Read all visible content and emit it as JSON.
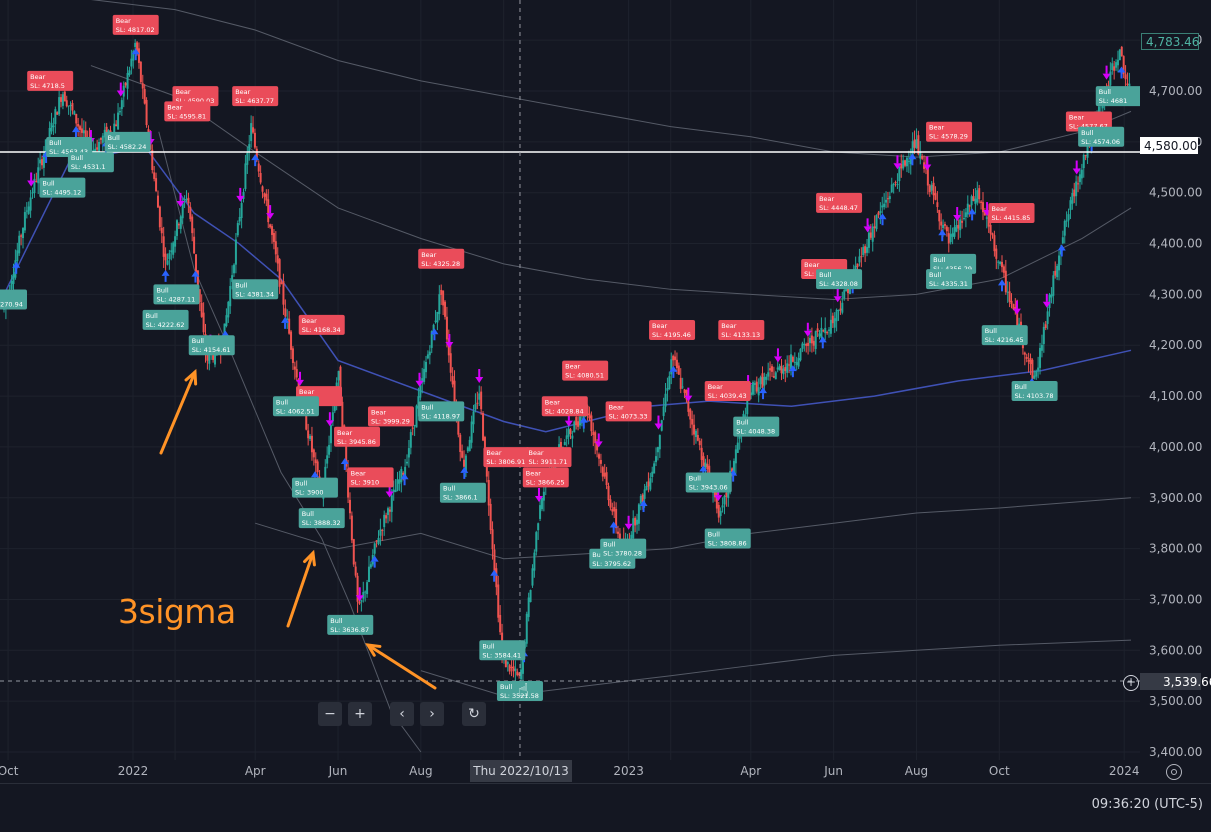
{
  "chart_data": {
    "type": "candlestick",
    "ylim": [
      3400,
      4820
    ],
    "y_ticks": [
      "4,800.00",
      "4,700.00",
      "4,600.00",
      "4,500.00",
      "4,400.00",
      "4,300.00",
      "4,200.00",
      "4,100.00",
      "4,000.00",
      "3,900.00",
      "3,800.00",
      "3,700.00",
      "3,600.00",
      "3,500.00",
      "3,400.00"
    ],
    "y_tick_values": [
      4800,
      4700,
      4600,
      4500,
      4400,
      4300,
      4200,
      4100,
      4000,
      3900,
      3800,
      3700,
      3600,
      3500,
      3400
    ],
    "x_ticks": [
      "Oct",
      "2022",
      "Feb",
      "Apr",
      "Jun",
      "Aug",
      "Oct",
      "2023",
      "Feb",
      "Apr",
      "Jun",
      "Aug",
      "Oct",
      "2024"
    ],
    "x_tick_dates": [
      "2021-10-01",
      "2022-01-01",
      "2022-02-01",
      "2022-04-01",
      "2022-06-01",
      "2022-08-01",
      "2022-10-01",
      "2023-01-01",
      "2023-02-01",
      "2023-04-01",
      "2023-06-01",
      "2023-08-01",
      "2023-10-01",
      "2024-01-01"
    ],
    "x_tick_visible": [
      true,
      true,
      false,
      true,
      true,
      true,
      false,
      true,
      false,
      true,
      true,
      true,
      true,
      true
    ],
    "x_range": [
      "2021-09-28",
      "2024-01-06"
    ],
    "price_path": [
      [
        "2021-09-28",
        4270
      ],
      [
        "2021-10-15",
        4470
      ],
      [
        "2021-11-10",
        4700
      ],
      [
        "2021-12-01",
        4580
      ],
      [
        "2021-12-20",
        4640
      ],
      [
        "2022-01-03",
        4796
      ],
      [
        "2022-01-25",
        4360
      ],
      [
        "2022-02-10",
        4500
      ],
      [
        "2022-02-24",
        4170
      ],
      [
        "2022-03-08",
        4200
      ],
      [
        "2022-03-29",
        4630
      ],
      [
        "2022-04-15",
        4390
      ],
      [
        "2022-05-02",
        4130
      ],
      [
        "2022-05-20",
        3900
      ],
      [
        "2022-06-01",
        4150
      ],
      [
        "2022-06-16",
        3670
      ],
      [
        "2022-07-01",
        3830
      ],
      [
        "2022-07-20",
        3960
      ],
      [
        "2022-08-16",
        4310
      ],
      [
        "2022-09-01",
        3960
      ],
      [
        "2022-09-13",
        4110
      ],
      [
        "2022-09-30",
        3585
      ],
      [
        "2022-10-13",
        3540
      ],
      [
        "2022-10-28",
        3900
      ],
      [
        "2022-11-10",
        3990
      ],
      [
        "2022-12-01",
        4080
      ],
      [
        "2022-12-28",
        3790
      ],
      [
        "2023-01-20",
        3970
      ],
      [
        "2023-02-02",
        4180
      ],
      [
        "2023-03-10",
        3860
      ],
      [
        "2023-03-31",
        4110
      ],
      [
        "2023-05-01",
        4170
      ],
      [
        "2023-06-01",
        4250
      ],
      [
        "2023-07-03",
        4450
      ],
      [
        "2023-07-31",
        4600
      ],
      [
        "2023-08-25",
        4400
      ],
      [
        "2023-09-15",
        4500
      ],
      [
        "2023-10-27",
        4130
      ],
      [
        "2023-11-15",
        4400
      ],
      [
        "2023-12-01",
        4560
      ],
      [
        "2023-12-28",
        4780
      ],
      [
        "2024-01-05",
        4700
      ]
    ],
    "ma_fast": [
      [
        "2021-09-28",
        4300
      ],
      [
        "2021-11-15",
        4560
      ],
      [
        "2022-01-10",
        4590
      ],
      [
        "2022-02-15",
        4460
      ],
      [
        "2022-03-20",
        4400
      ],
      [
        "2022-04-20",
        4330
      ],
      [
        "2022-06-01",
        4170
      ],
      [
        "2022-08-01",
        4110
      ],
      [
        "2022-10-01",
        4050
      ],
      [
        "2022-11-01",
        4030
      ],
      [
        "2022-12-01",
        4050
      ],
      [
        "2023-01-15",
        4080
      ],
      [
        "2023-03-01",
        4090
      ],
      [
        "2023-05-01",
        4080
      ],
      [
        "2023-07-01",
        4100
      ],
      [
        "2023-09-01",
        4130
      ],
      [
        "2023-11-01",
        4150
      ],
      [
        "2024-01-06",
        4190
      ]
    ],
    "band_upper": [
      [
        "2021-12-01",
        4880
      ],
      [
        "2022-02-01",
        4860
      ],
      [
        "2022-04-01",
        4820
      ],
      [
        "2022-06-01",
        4760
      ],
      [
        "2022-08-01",
        4720
      ],
      [
        "2022-10-01",
        4690
      ],
      [
        "2022-12-01",
        4660
      ],
      [
        "2023-02-01",
        4630
      ],
      [
        "2023-04-01",
        4610
      ],
      [
        "2023-06-01",
        4580
      ],
      [
        "2023-08-01",
        4570
      ],
      [
        "2023-10-01",
        4580
      ],
      [
        "2023-12-01",
        4620
      ],
      [
        "2024-01-06",
        4660
      ]
    ],
    "band_mid": [
      [
        "2021-12-01",
        4750
      ],
      [
        "2022-02-01",
        4690
      ],
      [
        "2022-04-01",
        4580
      ],
      [
        "2022-06-01",
        4470
      ],
      [
        "2022-08-01",
        4410
      ],
      [
        "2022-10-01",
        4360
      ],
      [
        "2022-12-01",
        4330
      ],
      [
        "2023-02-01",
        4310
      ],
      [
        "2023-04-01",
        4300
      ],
      [
        "2023-06-01",
        4290
      ],
      [
        "2023-08-01",
        4300
      ],
      [
        "2023-10-01",
        4330
      ],
      [
        "2023-12-01",
        4410
      ],
      [
        "2024-01-06",
        4470
      ]
    ],
    "band_lower": [
      [
        "2022-04-01",
        3850
      ],
      [
        "2022-06-01",
        3800
      ],
      [
        "2022-08-01",
        3830
      ],
      [
        "2022-10-01",
        3780
      ],
      [
        "2022-12-01",
        3790
      ],
      [
        "2023-02-01",
        3800
      ],
      [
        "2023-04-01",
        3830
      ],
      [
        "2023-06-01",
        3850
      ],
      [
        "2023-08-01",
        3870
      ],
      [
        "2023-10-01",
        3880
      ],
      [
        "2024-01-06",
        3900
      ]
    ],
    "band_lower2": [
      [
        "2022-08-01",
        3560
      ],
      [
        "2022-10-01",
        3510
      ],
      [
        "2022-12-01",
        3530
      ],
      [
        "2023-02-01",
        3550
      ],
      [
        "2023-04-01",
        3570
      ],
      [
        "2023-06-01",
        3590
      ],
      [
        "2023-08-01",
        3600
      ],
      [
        "2023-10-01",
        3610
      ],
      [
        "2024-01-06",
        3620
      ]
    ],
    "band_lower3": [
      [
        "2022-01-20",
        4620
      ],
      [
        "2022-02-15",
        4350
      ],
      [
        "2022-03-15",
        4180
      ],
      [
        "2022-04-20",
        3950
      ],
      [
        "2022-05-20",
        3820
      ],
      [
        "2022-06-10",
        3690
      ],
      [
        "2022-07-10",
        3480
      ],
      [
        "2022-08-01",
        3400
      ]
    ],
    "horizontal_line": 4580,
    "last_price": "4,783.46",
    "line_price": "4,580.00",
    "crosshair_price": "3,539.66",
    "crosshair_date": "Thu 2022/10/13",
    "crosshair_date_iso": "2022-10-13",
    "crosshair_value": 3539.66,
    "bear_labels": [
      {
        "date": "2021-11-01",
        "price": 4720,
        "text": "SL: 4718.5"
      },
      {
        "date": "2022-01-03",
        "price": 4830,
        "text": "SL: 4817.02"
      },
      {
        "date": "2022-02-16",
        "price": 4690,
        "text": "SL: 4590.03"
      },
      {
        "date": "2022-02-10",
        "price": 4660,
        "text": "SL: 4595.81"
      },
      {
        "date": "2022-04-01",
        "price": 4690,
        "text": "SL: 4637.77"
      },
      {
        "date": "2022-05-20",
        "price": 4240,
        "text": "SL: 4168.34"
      },
      {
        "date": "2022-05-18",
        "price": 4100,
        "text": ""
      },
      {
        "date": "2022-06-15",
        "price": 4020,
        "text": "SL: 3945.86"
      },
      {
        "date": "2022-06-25",
        "price": 3940,
        "text": "SL: 3910"
      },
      {
        "date": "2022-07-10",
        "price": 4060,
        "text": "SL: 3999.29"
      },
      {
        "date": "2022-08-16",
        "price": 4370,
        "text": "SL: 4325.28"
      },
      {
        "date": "2022-10-03",
        "price": 3980,
        "text": "SL: 3806.91"
      },
      {
        "date": "2022-11-03",
        "price": 3980,
        "text": "SL: 3911.71"
      },
      {
        "date": "2022-11-01",
        "price": 3940,
        "text": "SL: 3866.25"
      },
      {
        "date": "2022-11-15",
        "price": 4080,
        "text": "SL: 4028.84"
      },
      {
        "date": "2022-11-30",
        "price": 4150,
        "text": "SL: 4080.51"
      },
      {
        "date": "2023-01-01",
        "price": 4070,
        "text": "SL: 4073.33"
      },
      {
        "date": "2023-02-02",
        "price": 4230,
        "text": "SL: 4195.46"
      },
      {
        "date": "2023-03-15",
        "price": 4110,
        "text": "SL: 4039.43"
      },
      {
        "date": "2023-03-25",
        "price": 4230,
        "text": "SL: 4133.13"
      },
      {
        "date": "2023-06-05",
        "price": 4480,
        "text": "SL: 4448.47"
      },
      {
        "date": "2023-05-25",
        "price": 4350,
        "text": "SL: 4328.28"
      },
      {
        "date": "2023-08-25",
        "price": 4620,
        "text": "SL: 4578.29"
      },
      {
        "date": "2023-10-10",
        "price": 4460,
        "text": "SL: 4415.85"
      },
      {
        "date": "2023-12-06",
        "price": 4640,
        "text": "SL: 4577.67"
      }
    ],
    "bull_labels": [
      {
        "date": "2021-09-28",
        "price": 4290,
        "text": "SL: 4270.94"
      },
      {
        "date": "2021-11-15",
        "price": 4590,
        "text": "SL: 4563.43"
      },
      {
        "date": "2021-11-10",
        "price": 4510,
        "text": "SL: 4495.12"
      },
      {
        "date": "2021-12-01",
        "price": 4560,
        "text": "SL: 4531.1"
      },
      {
        "date": "2021-12-28",
        "price": 4600,
        "text": "SL: 4582.24"
      },
      {
        "date": "2022-02-02",
        "price": 4300,
        "text": "SL: 4287.11"
      },
      {
        "date": "2022-01-25",
        "price": 4250,
        "text": "SL: 4222.62"
      },
      {
        "date": "2022-02-28",
        "price": 4200,
        "text": "SL: 4154.61"
      },
      {
        "date": "2022-04-01",
        "price": 4310,
        "text": "SL: 4381.34"
      },
      {
        "date": "2022-05-01",
        "price": 4080,
        "text": "SL: 4062.51"
      },
      {
        "date": "2022-05-15",
        "price": 3920,
        "text": "SL: 3900"
      },
      {
        "date": "2022-05-20",
        "price": 3860,
        "text": "SL: 3888.32"
      },
      {
        "date": "2022-06-10",
        "price": 3650,
        "text": "SL: 3636.87"
      },
      {
        "date": "2022-08-16",
        "price": 4070,
        "text": "SL: 4118.97"
      },
      {
        "date": "2022-09-01",
        "price": 3910,
        "text": "SL: 3866.1"
      },
      {
        "date": "2022-09-30",
        "price": 3600,
        "text": "SL: 3584.41"
      },
      {
        "date": "2022-10-13",
        "price": 3520,
        "text": "SL: 3521.58"
      },
      {
        "date": "2022-12-20",
        "price": 3780,
        "text": "SL: 3795.62"
      },
      {
        "date": "2022-12-28",
        "price": 3800,
        "text": "SL: 3780.28"
      },
      {
        "date": "2023-03-01",
        "price": 3930,
        "text": "SL: 3943.06"
      },
      {
        "date": "2023-03-15",
        "price": 3820,
        "text": "SL: 3808.86"
      },
      {
        "date": "2023-04-05",
        "price": 4040,
        "text": "SL: 4048.38"
      },
      {
        "date": "2023-06-05",
        "price": 4330,
        "text": "SL: 4328.08"
      },
      {
        "date": "2023-08-28",
        "price": 4360,
        "text": "SL: 4356.29"
      },
      {
        "date": "2023-08-25",
        "price": 4330,
        "text": "SL: 4335.31"
      },
      {
        "date": "2023-10-05",
        "price": 4220,
        "text": "SL: 4216.45"
      },
      {
        "date": "2023-10-27",
        "price": 4110,
        "text": "SL: 4103.78"
      },
      {
        "date": "2023-12-15",
        "price": 4610,
        "text": "SL: 4574.06"
      },
      {
        "date": "2023-12-28",
        "price": 4690,
        "text": "SL: 4681"
      }
    ],
    "colors": {
      "background": "#141722",
      "up": "#26a69a",
      "down": "#ef5350",
      "ma": "#3f51b5",
      "band": "#555a66",
      "horizontal": "#ffffff",
      "bull_tag": "#4aa39a",
      "bear_tag": "#ea4c5a",
      "arrow_up": "#2962ff",
      "arrow_mag": "#d500f9",
      "annotation": "#ff9326"
    }
  },
  "annotation": {
    "text": "3sigma",
    "arrows_icon": "arrow-icon"
  },
  "nav": {
    "zoom_out": "−",
    "zoom_in": "+",
    "scroll_left": "‹",
    "scroll_right": "›",
    "reset": "↻"
  },
  "status": {
    "time": "09:36:20 (UTC-5)"
  },
  "tag_texts": {
    "bull": "Bull",
    "bear": "Bear"
  }
}
